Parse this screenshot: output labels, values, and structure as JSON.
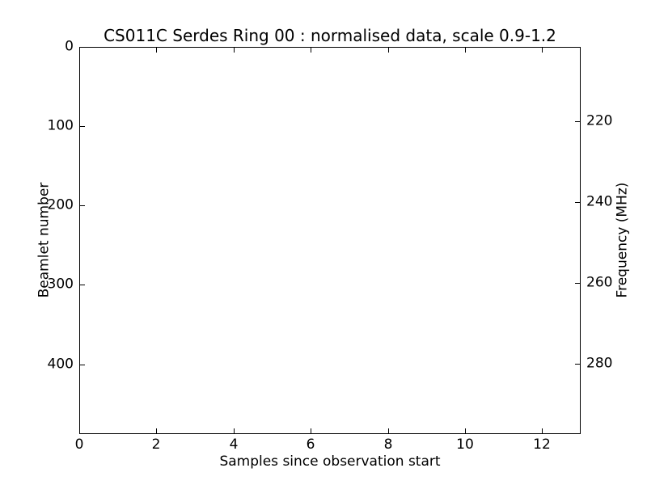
{
  "figure": {
    "background": "#ffffff",
    "frame_color": "#000000",
    "text_color": "#000000"
  },
  "title": "CS011C Serdes Ring 00 : normalised data, scale 0.9-1.2",
  "xaxis": {
    "label": "Samples since observation start"
  },
  "yaxis_left": {
    "label": "Beamlet number"
  },
  "yaxis_right": {
    "label": "Frequency (MHz)"
  },
  "chart_data": {
    "type": "heatmap",
    "title": "CS011C Serdes Ring 00 : normalised data, scale 0.9-1.2",
    "xlabel": "Samples since observation start",
    "ylabel_left": "Beamlet number",
    "ylabel_right": "Frequency (MHz)",
    "xlim": [
      0,
      13
    ],
    "xticks": [
      0,
      2,
      4,
      6,
      8,
      10,
      12
    ],
    "ylim_left_top_to_bottom": [
      0,
      488
    ],
    "yticks_left": [
      0,
      100,
      200,
      300,
      400
    ],
    "ylim_right_top_to_bottom": [
      201.6,
      297.4
    ],
    "yticks_right": [
      220,
      240,
      260,
      280
    ],
    "color_scale": [
      0.9,
      1.2
    ],
    "values": [],
    "grid": false,
    "legend": null,
    "plot_area_empty": true
  }
}
